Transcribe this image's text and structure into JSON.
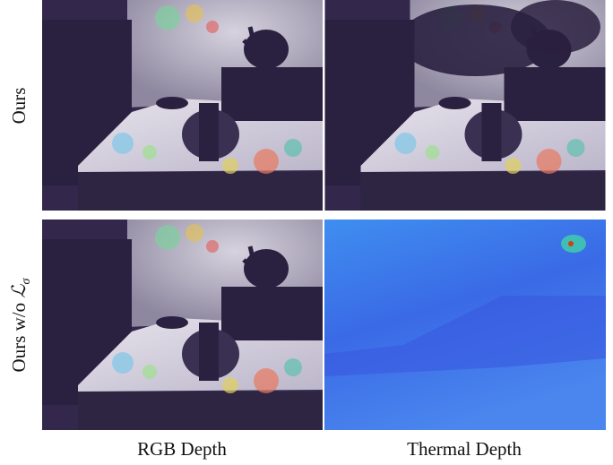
{
  "figure": {
    "columns": [
      "RGB Depth",
      "Thermal Depth"
    ],
    "rows": [
      {
        "label": "Ours"
      },
      {
        "label": "Ours w/o ",
        "symbol": "ℒ",
        "subscript": "σ"
      }
    ]
  }
}
